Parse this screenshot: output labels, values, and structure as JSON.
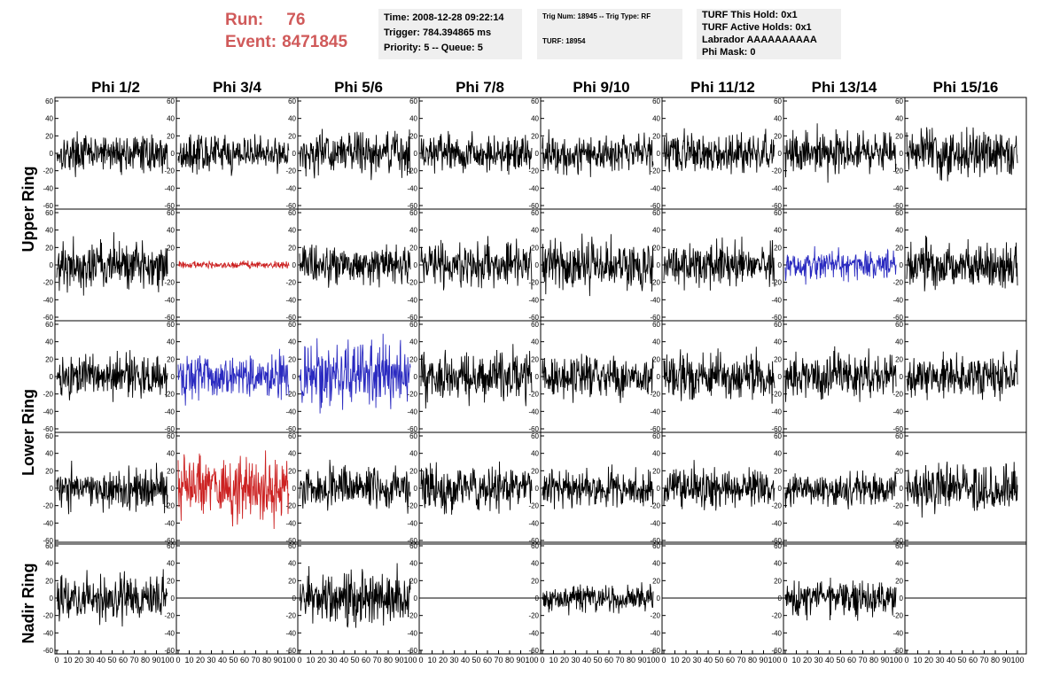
{
  "header": {
    "run_label": "Run:",
    "run_value": "76",
    "event_label": "Event:",
    "event_value": "8471845",
    "time_panel": [
      "Time: 2008-12-28 09:22:14",
      "Trigger: 784.394865 ms",
      "Priority: 5 -- Queue: 5"
    ],
    "trig_panel": [
      "Trig Num: 18945 -- Trig Type: RF",
      "TURF: 18954"
    ],
    "turf_panel": [
      "TURF This Hold: 0x1",
      "TURF Active Holds: 0x1",
      "Labrador AAAAAAAAAA",
      "Phi Mask: 0"
    ]
  },
  "columns": [
    "Phi 1/2",
    "Phi 3/4",
    "Phi 5/6",
    "Phi 7/8",
    "Phi 9/10",
    "Phi 11/12",
    "Phi 13/14",
    "Phi 15/16"
  ],
  "ring_labels": [
    "Upper Ring",
    "Lower Ring",
    "Nadir Ring"
  ],
  "colors": {
    "black": "#000000",
    "red": "#cc2222",
    "blue": "#2a2ac0"
  },
  "chart_data": {
    "type": "line",
    "description_axes": "Grid of waveform panels; x from 0 to 100, y from -60 to 60",
    "xlim": [
      0,
      100
    ],
    "ylim": [
      -60,
      60
    ],
    "y_ticks": [
      -60,
      -40,
      -20,
      0,
      20,
      40,
      60
    ],
    "x_ticks": [
      0,
      10,
      20,
      30,
      40,
      50,
      60,
      70,
      80,
      90,
      100
    ],
    "panels": [
      {
        "row": 0,
        "col": 0,
        "color": "black",
        "amp": 10
      },
      {
        "row": 0,
        "col": 1,
        "color": "black",
        "amp": 10
      },
      {
        "row": 0,
        "col": 2,
        "color": "black",
        "amp": 12
      },
      {
        "row": 0,
        "col": 3,
        "color": "black",
        "amp": 10
      },
      {
        "row": 0,
        "col": 4,
        "color": "black",
        "amp": 11
      },
      {
        "row": 0,
        "col": 5,
        "color": "black",
        "amp": 11
      },
      {
        "row": 0,
        "col": 6,
        "color": "black",
        "amp": 12
      },
      {
        "row": 0,
        "col": 7,
        "color": "black",
        "amp": 13
      },
      {
        "row": 1,
        "col": 0,
        "color": "black",
        "amp": 14
      },
      {
        "row": 1,
        "col": 1,
        "color": "red",
        "amp": 2
      },
      {
        "row": 1,
        "col": 2,
        "color": "black",
        "amp": 11
      },
      {
        "row": 1,
        "col": 3,
        "color": "black",
        "amp": 12
      },
      {
        "row": 1,
        "col": 4,
        "color": "black",
        "amp": 14
      },
      {
        "row": 1,
        "col": 5,
        "color": "black",
        "amp": 12
      },
      {
        "row": 1,
        "col": 6,
        "color": "blue",
        "amp": 8
      },
      {
        "row": 1,
        "col": 7,
        "color": "black",
        "amp": 13
      },
      {
        "row": 2,
        "col": 0,
        "color": "black",
        "amp": 12
      },
      {
        "row": 2,
        "col": 1,
        "color": "blue",
        "amp": 14
      },
      {
        "row": 2,
        "col": 2,
        "color": "blue",
        "amp": 18
      },
      {
        "row": 2,
        "col": 3,
        "color": "black",
        "amp": 14
      },
      {
        "row": 2,
        "col": 4,
        "color": "black",
        "amp": 11
      },
      {
        "row": 2,
        "col": 5,
        "color": "black",
        "amp": 13
      },
      {
        "row": 2,
        "col": 6,
        "color": "black",
        "amp": 13
      },
      {
        "row": 2,
        "col": 7,
        "color": "black",
        "amp": 12
      },
      {
        "row": 3,
        "col": 0,
        "color": "black",
        "amp": 12
      },
      {
        "row": 3,
        "col": 1,
        "color": "red",
        "amp": 17
      },
      {
        "row": 3,
        "col": 2,
        "color": "black",
        "amp": 12
      },
      {
        "row": 3,
        "col": 3,
        "color": "black",
        "amp": 13
      },
      {
        "row": 3,
        "col": 4,
        "color": "black",
        "amp": 11
      },
      {
        "row": 3,
        "col": 5,
        "color": "black",
        "amp": 12
      },
      {
        "row": 3,
        "col": 6,
        "color": "black",
        "amp": 10
      },
      {
        "row": 3,
        "col": 7,
        "color": "black",
        "amp": 13
      },
      {
        "row": 4,
        "col": 0,
        "color": "black",
        "amp": 12
      },
      {
        "row": 4,
        "col": 1,
        "color": "black",
        "amp": 0
      },
      {
        "row": 4,
        "col": 2,
        "color": "black",
        "amp": 14
      },
      {
        "row": 4,
        "col": 3,
        "color": "black",
        "amp": 0
      },
      {
        "row": 4,
        "col": 4,
        "color": "black",
        "amp": 8
      },
      {
        "row": 4,
        "col": 5,
        "color": "black",
        "amp": 0
      },
      {
        "row": 4,
        "col": 6,
        "color": "black",
        "amp": 10
      },
      {
        "row": 4,
        "col": 7,
        "color": "black",
        "amp": 0
      }
    ]
  }
}
